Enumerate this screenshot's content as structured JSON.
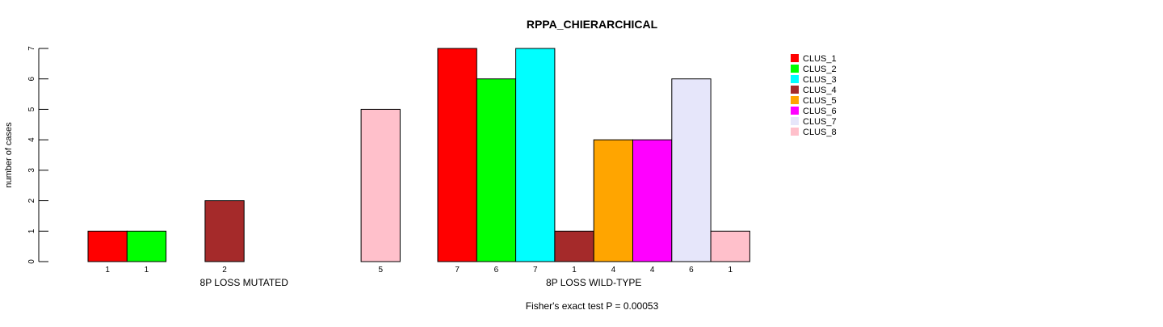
{
  "chart_data": {
    "type": "bar",
    "title": "RPPA_CHIERARCHICAL",
    "ylabel": "number of cases",
    "footnote": "Fisher's exact test P = 0.00053",
    "ylim": [
      0,
      7
    ],
    "y_ticks": [
      0,
      1,
      2,
      3,
      4,
      5,
      6,
      7
    ],
    "groups": [
      {
        "label": "8P LOSS MUTATED",
        "values": [
          1,
          1,
          0,
          2,
          0,
          0,
          0,
          5
        ],
        "count_labels": [
          "1",
          "1",
          "",
          "2",
          "",
          "",
          "",
          "5"
        ]
      },
      {
        "label": "8P LOSS WILD-TYPE",
        "values": [
          7,
          6,
          7,
          1,
          4,
          4,
          6,
          1
        ],
        "count_labels": [
          "7",
          "6",
          "7",
          "1",
          "4",
          "4",
          "6",
          "1"
        ]
      }
    ],
    "series": [
      {
        "name": "CLUS_1",
        "color": "#ff0000"
      },
      {
        "name": "CLUS_2",
        "color": "#00ff00"
      },
      {
        "name": "CLUS_3",
        "color": "#00ffff"
      },
      {
        "name": "CLUS_4",
        "color": "#a52a2a"
      },
      {
        "name": "CLUS_5",
        "color": "#ffa500"
      },
      {
        "name": "CLUS_6",
        "color": "#ff00ff"
      },
      {
        "name": "CLUS_7",
        "color": "#e6e6fa"
      },
      {
        "name": "CLUS_8",
        "color": "#ffc0cb"
      }
    ],
    "legend_position": "top-right",
    "grid": false
  }
}
